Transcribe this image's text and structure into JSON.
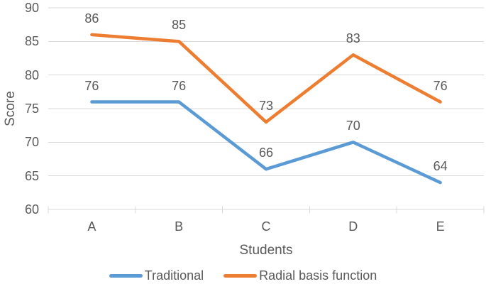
{
  "chart_data": {
    "type": "line",
    "categories": [
      "A",
      "B",
      "C",
      "D",
      "E"
    ],
    "series": [
      {
        "name": "Traditional",
        "color": "#5B9BD5",
        "values": [
          76,
          76,
          66,
          70,
          64
        ]
      },
      {
        "name": "Radial basis function",
        "color": "#ED7D31",
        "values": [
          86,
          85,
          73,
          83,
          76
        ]
      }
    ],
    "xlabel": "Students",
    "ylabel": "Score",
    "ylim": [
      60,
      90
    ],
    "ytick_step": 5,
    "grid": true,
    "legend_position": "bottom",
    "data_labels": true
  },
  "colors": {
    "text": "#595959",
    "gridline": "#D9D9D9",
    "background": "#FFFFFF"
  }
}
